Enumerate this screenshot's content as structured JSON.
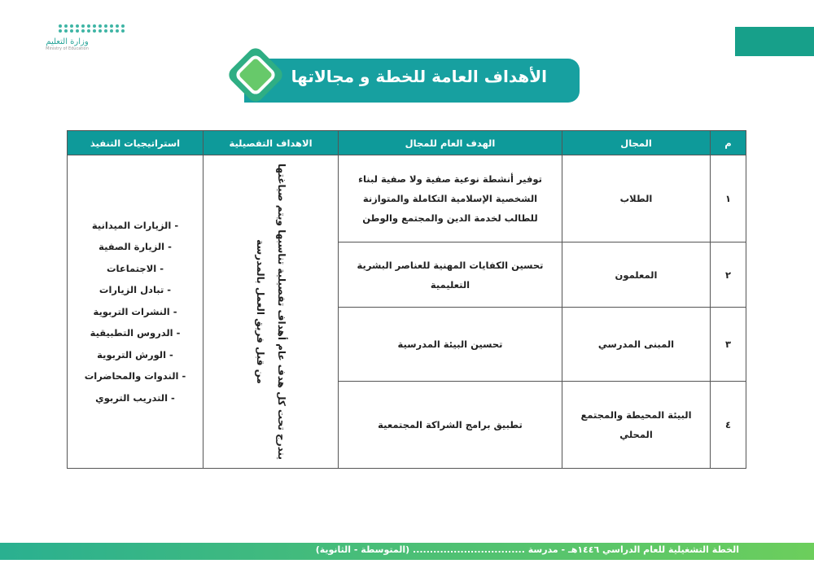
{
  "logo": {
    "ar": "وزارة التعليم",
    "en": "Ministry of Education"
  },
  "title": "الأهداف العامة للخطة و مجالاتها",
  "table": {
    "headers": [
      "م",
      "المجال",
      "الهدف العام للمجال",
      "الاهداف التفصيلية",
      "استراتيجيات التنفيذ"
    ],
    "rows": [
      {
        "num": "١",
        "domain": "الطلاب",
        "goal": "توفير أنشطة نوعية صفية ولا صفية لبناء الشخصية الإسلامية التكاملة والمتوازنة للطالب لخدمة الدين والمجتمع والوطن"
      },
      {
        "num": "٢",
        "domain": "المعلمون",
        "goal": "تحسين الكفايات المهنية للعناصر البشرية التعليمية"
      },
      {
        "num": "٣",
        "domain": "المبنى المدرسي",
        "goal": "تحسين البيئة المدرسية"
      },
      {
        "num": "٤",
        "domain": "البيئة المحيطة والمجتمع المحلي",
        "goal": "تطبيق برامج الشراكة المجتمعية"
      }
    ],
    "detailed": "يندرج تحت كل هدف عام أهداف تفصيلية تناسبها ويتم صياغتها من قبل فريق العمل بالمدرسة",
    "strategies": [
      "- الزيارات الميدانية",
      "- الزيارة الصفية",
      "- الاجتماعات",
      "- تبادل الزيارات",
      "- النشرات التربوية",
      "- الدروس التطبيقية",
      "- الورش التربوية",
      "- الندوات والمحاضرات",
      "- التدريب التربوي"
    ]
  },
  "footer": "الخطة التشغيلية للعام الدراسي ١٤٤٦هـ - مدرسة ................................. (المتوسطة - الثانوية)"
}
